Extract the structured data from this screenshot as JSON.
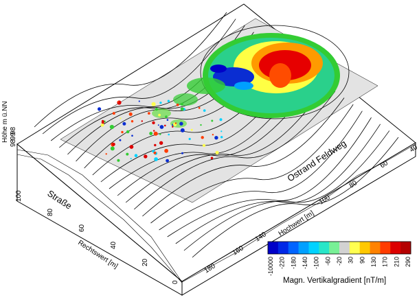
{
  "labels": {
    "strasse": "Straße",
    "feldweg": "Ostrand Feldweg",
    "hochwert": "Hochwert [m]",
    "rechtswert": "Rechtswert [m]",
    "hoehe": "Höhe m ü.NN"
  },
  "ticks": {
    "front_x": [
      "0",
      "20",
      "40",
      "60",
      "80",
      "100"
    ],
    "front_depth": [
      "180",
      "160",
      "140"
    ],
    "right_y": [
      "40",
      "60",
      "80",
      "100",
      "120",
      "140",
      "160",
      "180"
    ],
    "height": [
      "98",
      "99",
      "98"
    ]
  },
  "colorbar": {
    "title": "Magn. Vertikalgradient [nT/m]",
    "ticks": [
      "-10000",
      "-220",
      "-180",
      "-140",
      "-100",
      "-60",
      "-20",
      "30",
      "90",
      "130",
      "170",
      "210",
      "290"
    ],
    "colors": [
      "#0000c8",
      "#0028e6",
      "#0064ff",
      "#00a0ff",
      "#00d2ff",
      "#28e6c8",
      "#78f096",
      "#d2d2d2",
      "#ffff50",
      "#ffc800",
      "#ff8200",
      "#ff3c00",
      "#dc0000",
      "#b40000"
    ]
  },
  "colors": {
    "grid_fill": "#e3e3e3",
    "contour": "#000000",
    "anomaly_red": "#e60000",
    "anomaly_blue": "#0a2dd2"
  }
}
